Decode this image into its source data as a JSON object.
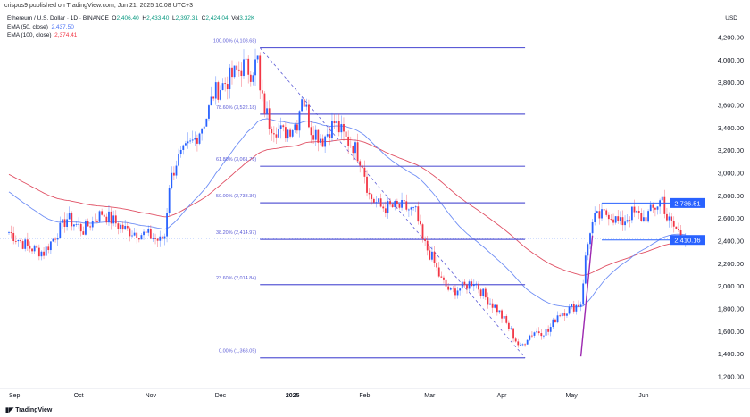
{
  "published": "crispus9 published on TradingView.com, Jun 21, 2025 10:08 UTC+3",
  "symbol": "Ethereum / U.S. Dollar · 1D · BINANCE",
  "ohlc": {
    "o_label": "O",
    "o": "2,406.40",
    "h_label": "H",
    "h": "2,433.40",
    "l_label": "L",
    "l": "2,397.31",
    "c_label": "C",
    "c": "2,424.04",
    "vol_label": "Vol",
    "vol": "3.32K"
  },
  "ema50": {
    "label": "EMA (50, close)",
    "value": "2,437.50",
    "color": "#4a72f5"
  },
  "ema100": {
    "label": "EMA (100, close)",
    "value": "2,374.41",
    "color": "#f23645"
  },
  "currency": "USD",
  "logo": "TradingView",
  "colors": {
    "up": "#2962ff",
    "down": "#f23645",
    "fib": "#5b5bd6",
    "ema50": "#6f8ef5",
    "ema100": "#e05064"
  },
  "chart_data": {
    "type": "candlestick",
    "ylim": [
      1200,
      4300
    ],
    "y_ticks": [
      "4,200.00",
      "4,000.00",
      "3,800.00",
      "3,600.00",
      "3,400.00",
      "3,200.00",
      "3,000.00",
      "2,800.00",
      "2,600.00",
      "2,400.00",
      "2,200.00",
      "2,000.00",
      "1,800.00",
      "1,600.00",
      "1,400.00",
      "1,200.00"
    ],
    "y_tick_values": [
      4200,
      4000,
      3800,
      3600,
      3400,
      3200,
      3000,
      2800,
      2600,
      2400,
      2200,
      2000,
      1800,
      1600,
      1400,
      1200
    ],
    "x_ticks": [
      {
        "label": "Sep",
        "day": 0
      },
      {
        "label": "Oct",
        "day": 30
      },
      {
        "label": "Nov",
        "day": 61
      },
      {
        "label": "Dec",
        "day": 91
      },
      {
        "label": "2025",
        "day": 122
      },
      {
        "label": "Feb",
        "day": 153
      },
      {
        "label": "Mar",
        "day": 181
      },
      {
        "label": "Apr",
        "day": 212
      },
      {
        "label": "May",
        "day": 242
      },
      {
        "label": "Jun",
        "day": 273
      }
    ],
    "price_waypoints": [
      [
        0,
        2480
      ],
      [
        8,
        2350
      ],
      [
        15,
        2300
      ],
      [
        25,
        2600
      ],
      [
        32,
        2500
      ],
      [
        40,
        2650
      ],
      [
        50,
        2500
      ],
      [
        60,
        2450
      ],
      [
        65,
        2400
      ],
      [
        67,
        2450
      ],
      [
        69,
        2900
      ],
      [
        72,
        3100
      ],
      [
        80,
        3300
      ],
      [
        85,
        3500
      ],
      [
        88,
        3700
      ],
      [
        93,
        3800
      ],
      [
        98,
        3900
      ],
      [
        101,
        3950
      ],
      [
        104,
        3900
      ],
      [
        107,
        4000
      ],
      [
        108,
        3700
      ],
      [
        112,
        3450
      ],
      [
        118,
        3350
      ],
      [
        124,
        3450
      ],
      [
        126,
        3700
      ],
      [
        130,
        3400
      ],
      [
        135,
        3300
      ],
      [
        140,
        3450
      ],
      [
        145,
        3300
      ],
      [
        148,
        3250
      ],
      [
        152,
        3100
      ],
      [
        155,
        2800
      ],
      [
        160,
        2700
      ],
      [
        165,
        2700
      ],
      [
        170,
        2700
      ],
      [
        175,
        2650
      ],
      [
        178,
        2400
      ],
      [
        182,
        2250
      ],
      [
        186,
        2050
      ],
      [
        190,
        1950
      ],
      [
        196,
        2000
      ],
      [
        200,
        2050
      ],
      [
        205,
        1900
      ],
      [
        210,
        1800
      ],
      [
        216,
        1600
      ],
      [
        220,
        1450
      ],
      [
        223,
        1550
      ],
      [
        226,
        1600
      ],
      [
        232,
        1600
      ],
      [
        236,
        1750
      ],
      [
        241,
        1800
      ],
      [
        246,
        1850
      ],
      [
        248,
        2250
      ],
      [
        250,
        2500
      ],
      [
        252,
        2600
      ],
      [
        258,
        2650
      ],
      [
        263,
        2550
      ],
      [
        268,
        2650
      ],
      [
        273,
        2600
      ],
      [
        278,
        2700
      ],
      [
        281,
        2780
      ],
      [
        283,
        2600
      ],
      [
        287,
        2500
      ],
      [
        291,
        2424
      ]
    ],
    "ema_start": {
      "ema50": 2850,
      "ema100": 3000
    },
    "fib_levels": [
      {
        "label": "100.00% (4,108.68)",
        "value": 4108.68
      },
      {
        "label": "78.60% (3,522.18)",
        "value": 3522.18
      },
      {
        "label": "61.80% (3,061.78)",
        "value": 3061.78
      },
      {
        "label": "50.00% (2,738.36)",
        "value": 2738.36
      },
      {
        "label": "38.20% (2,414.97)",
        "value": 2414.97
      },
      {
        "label": "23.60% (2,014.84)",
        "value": 2014.84
      },
      {
        "label": "0.00% (1,368.05)",
        "value": 1368.05
      }
    ],
    "fib_days": [
      108,
      222
    ],
    "range_lines": [
      {
        "label": "2,736.51",
        "value": 2736.51
      },
      {
        "label": "2,410.16",
        "value": 2410.16
      }
    ],
    "range_start_day": 255
  }
}
